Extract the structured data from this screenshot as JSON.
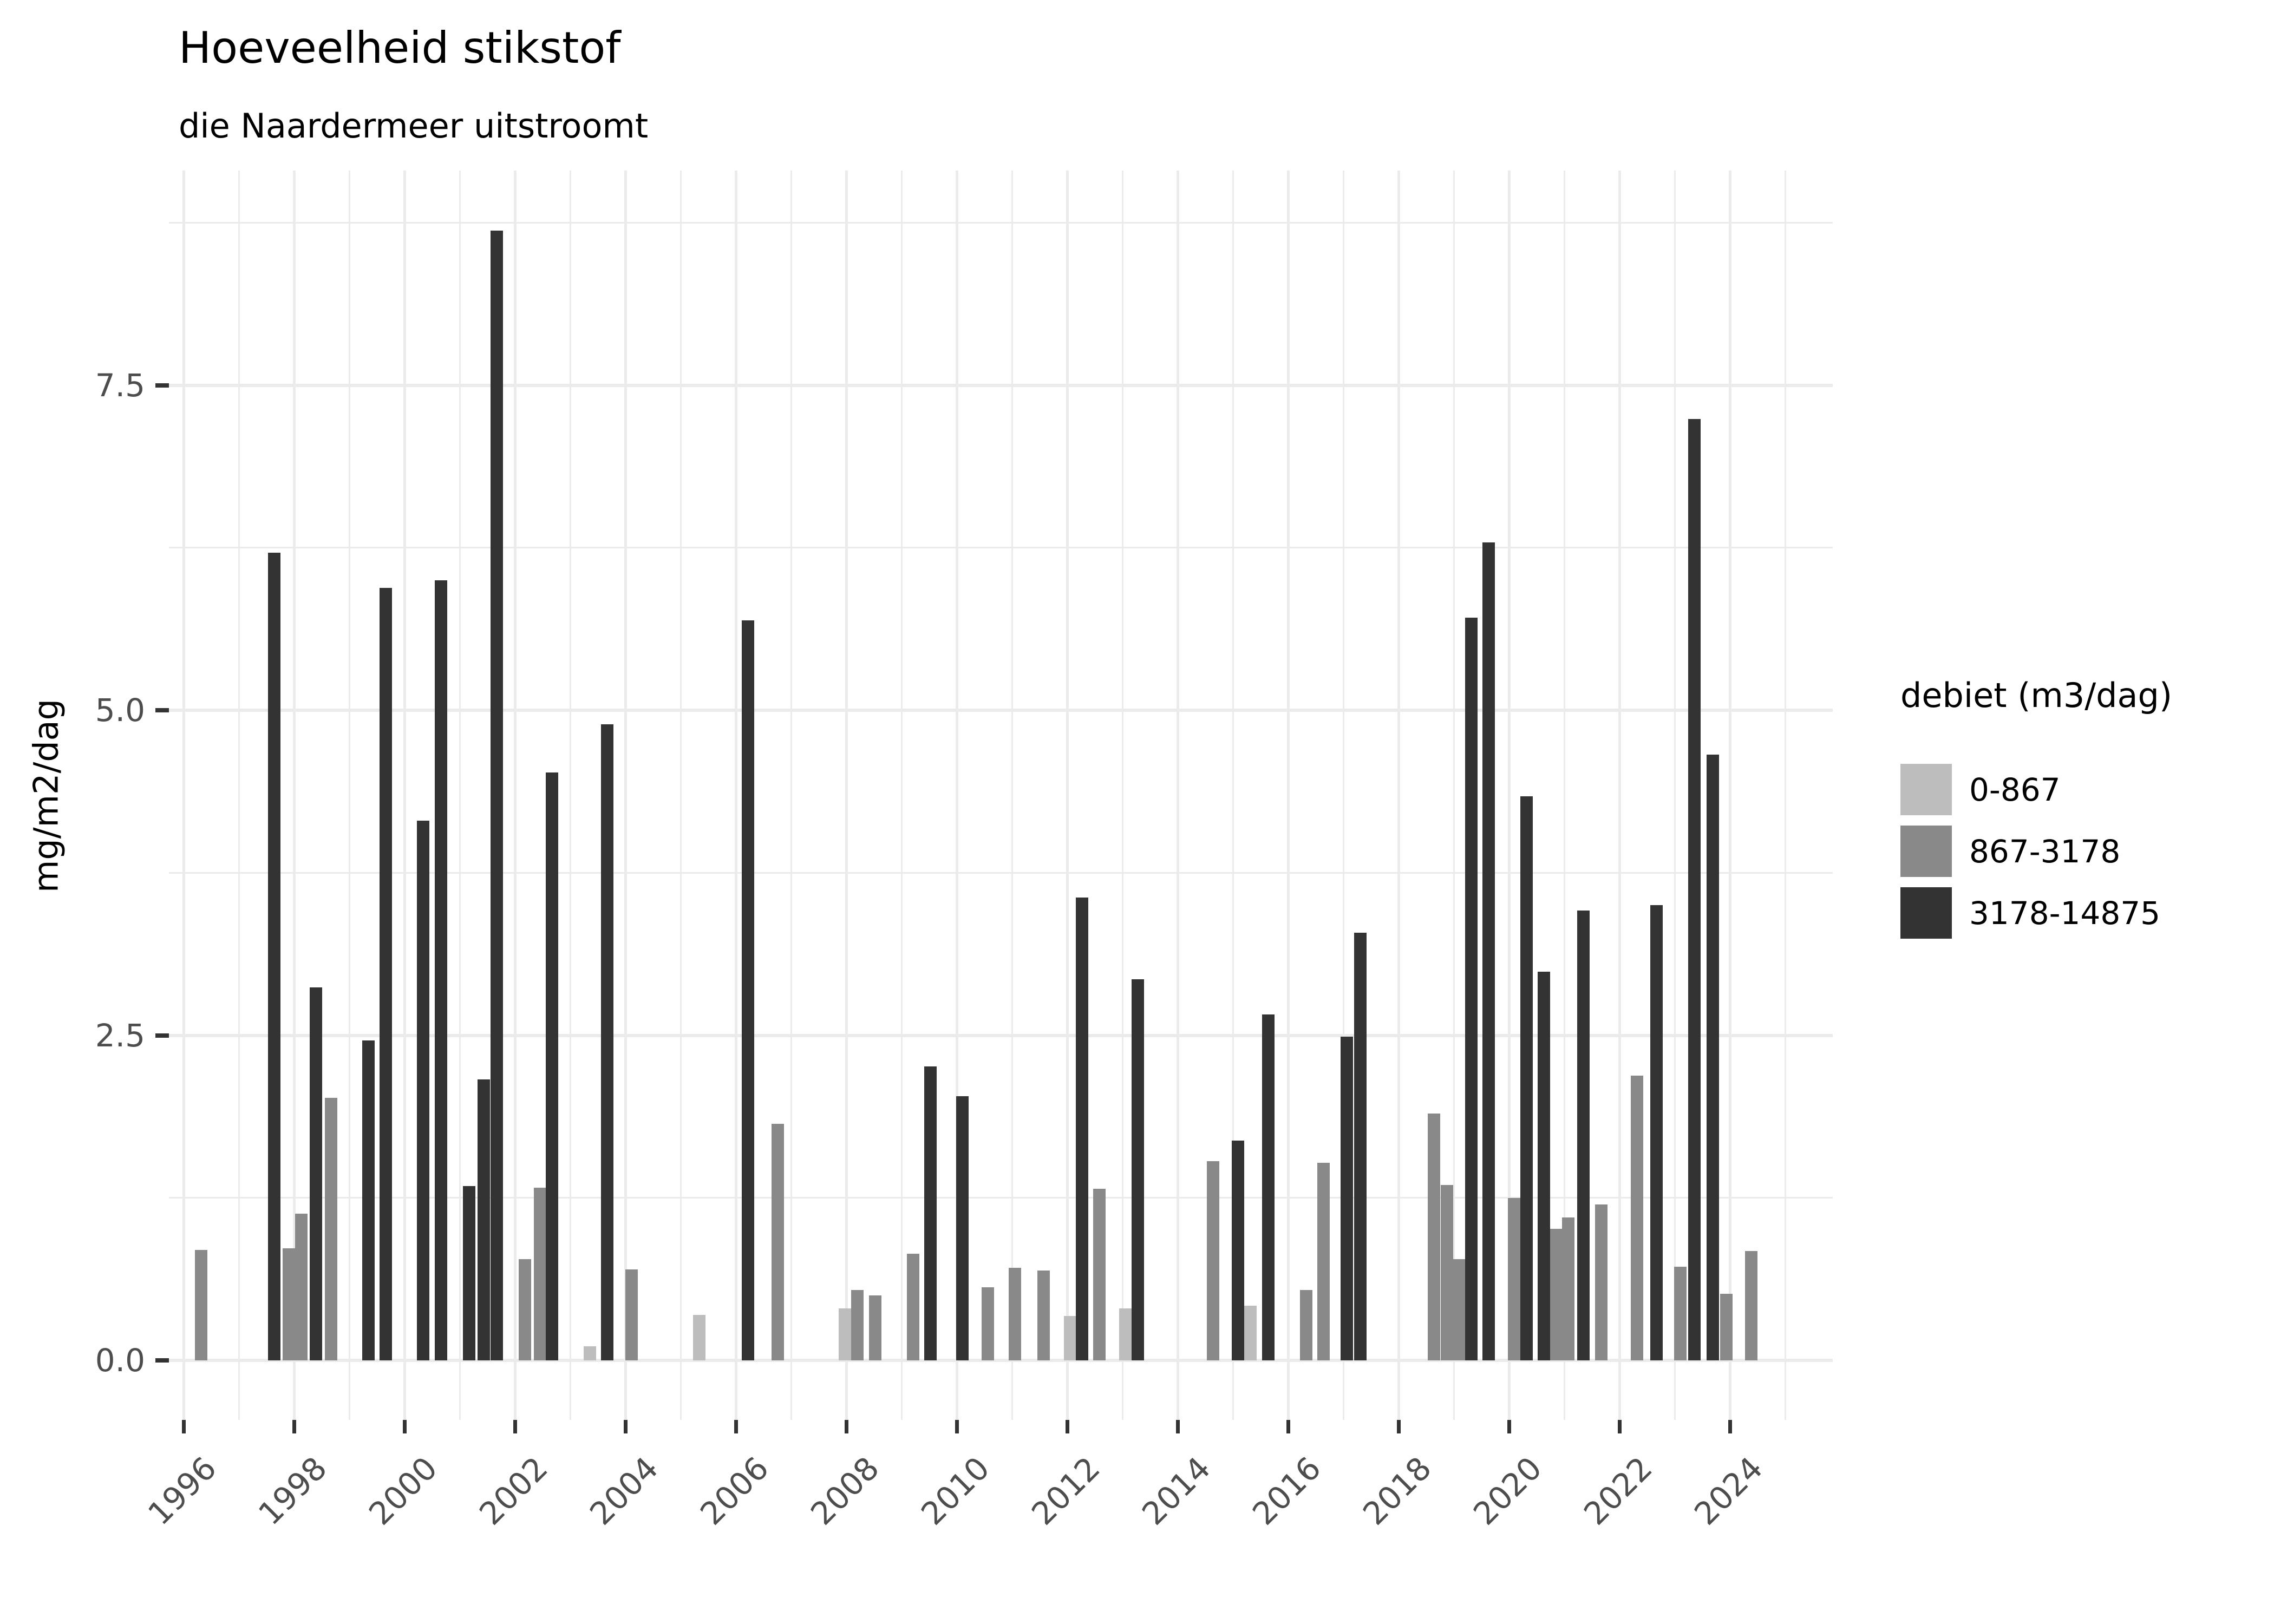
{
  "header": {
    "title": "Hoeveelheid stikstof",
    "subtitle": "die Naardermeer uitstroomt"
  },
  "chart_data": {
    "type": "bar",
    "title": "Hoeveelheid stikstof",
    "subtitle": "die Naardermeer uitstroomt",
    "xlabel": "",
    "ylabel": "mg/m2/dag",
    "ylim": [
      0,
      9.2
    ],
    "y_ticks": [
      0.0,
      2.5,
      5.0,
      7.5
    ],
    "y_tick_labels": [
      "0.0",
      "2.5",
      "5.0",
      "7.5"
    ],
    "y_minor_ticks": [
      1.25,
      3.75,
      6.25,
      8.75
    ],
    "x_ticks": [
      1996,
      1998,
      2000,
      2002,
      2004,
      2006,
      2008,
      2010,
      2012,
      2014,
      2016,
      2018,
      2020,
      2022,
      2024
    ],
    "x_tick_labels": [
      "1996",
      "1998",
      "2000",
      "2002",
      "2004",
      "2006",
      "2008",
      "2010",
      "2012",
      "2014",
      "2016",
      "2018",
      "2020",
      "2022",
      "2024"
    ],
    "x_range_years": [
      1995.7,
      2025.7
    ],
    "grid": "major-and-minor, light gray on white",
    "legend": {
      "title": "debiet (m3/dag)",
      "position": "right",
      "entries": [
        {
          "label": "0-867",
          "color": "#bdbdbd"
        },
        {
          "label": "867-3178",
          "color": "#898989"
        },
        {
          "label": "3178-14875",
          "color": "#333333"
        }
      ]
    },
    "bars": [
      {
        "x": 1996.31,
        "v": 0.85,
        "debiet": "867-3178"
      },
      {
        "x": 1997.64,
        "v": 6.21,
        "debiet": "3178-14875"
      },
      {
        "x": 1997.9,
        "v": 0.86,
        "debiet": "867-3178"
      },
      {
        "x": 1998.13,
        "v": 1.13,
        "debiet": "867-3178"
      },
      {
        "x": 1998.39,
        "v": 2.87,
        "debiet": "3178-14875"
      },
      {
        "x": 1998.67,
        "v": 2.02,
        "debiet": "867-3178"
      },
      {
        "x": 1999.34,
        "v": 2.46,
        "debiet": "3178-14875"
      },
      {
        "x": 1999.66,
        "v": 5.94,
        "debiet": "3178-14875"
      },
      {
        "x": 2000.33,
        "v": 4.15,
        "debiet": "3178-14875"
      },
      {
        "x": 2000.66,
        "v": 6.0,
        "debiet": "3178-14875"
      },
      {
        "x": 2001.17,
        "v": 1.34,
        "debiet": "3178-14875"
      },
      {
        "x": 2001.43,
        "v": 2.16,
        "debiet": "3178-14875"
      },
      {
        "x": 2001.67,
        "v": 8.69,
        "debiet": "3178-14875"
      },
      {
        "x": 2002.18,
        "v": 0.78,
        "debiet": "867-3178"
      },
      {
        "x": 2002.45,
        "v": 1.33,
        "debiet": "867-3178"
      },
      {
        "x": 2002.67,
        "v": 4.52,
        "debiet": "3178-14875"
      },
      {
        "x": 2003.35,
        "v": 0.11,
        "debiet": "0-867"
      },
      {
        "x": 2003.67,
        "v": 4.89,
        "debiet": "3178-14875"
      },
      {
        "x": 2004.11,
        "v": 0.7,
        "debiet": "867-3178"
      },
      {
        "x": 2005.33,
        "v": 0.35,
        "debiet": "0-867"
      },
      {
        "x": 2006.22,
        "v": 5.69,
        "debiet": "3178-14875"
      },
      {
        "x": 2006.75,
        "v": 1.82,
        "debiet": "867-3178"
      },
      {
        "x": 2007.97,
        "v": 0.4,
        "debiet": "0-867"
      },
      {
        "x": 2008.2,
        "v": 0.54,
        "debiet": "867-3178"
      },
      {
        "x": 2008.52,
        "v": 0.5,
        "debiet": "867-3178"
      },
      {
        "x": 2009.21,
        "v": 0.82,
        "debiet": "867-3178"
      },
      {
        "x": 2009.52,
        "v": 2.26,
        "debiet": "3178-14875"
      },
      {
        "x": 2010.1,
        "v": 2.03,
        "debiet": "3178-14875"
      },
      {
        "x": 2010.56,
        "v": 0.56,
        "debiet": "867-3178"
      },
      {
        "x": 2011.05,
        "v": 0.71,
        "debiet": "867-3178"
      },
      {
        "x": 2011.57,
        "v": 0.69,
        "debiet": "867-3178"
      },
      {
        "x": 2012.05,
        "v": 0.34,
        "debiet": "0-867"
      },
      {
        "x": 2012.26,
        "v": 3.56,
        "debiet": "3178-14875"
      },
      {
        "x": 2012.58,
        "v": 1.32,
        "debiet": "867-3178"
      },
      {
        "x": 2013.05,
        "v": 0.4,
        "debiet": "0-867"
      },
      {
        "x": 2013.27,
        "v": 2.93,
        "debiet": "3178-14875"
      },
      {
        "x": 2014.64,
        "v": 1.53,
        "debiet": "867-3178"
      },
      {
        "x": 2015.09,
        "v": 1.69,
        "debiet": "3178-14875"
      },
      {
        "x": 2015.31,
        "v": 0.42,
        "debiet": "0-867"
      },
      {
        "x": 2015.64,
        "v": 2.66,
        "debiet": "3178-14875"
      },
      {
        "x": 2016.32,
        "v": 0.54,
        "debiet": "867-3178"
      },
      {
        "x": 2016.64,
        "v": 1.52,
        "debiet": "867-3178"
      },
      {
        "x": 2017.06,
        "v": 2.49,
        "debiet": "3178-14875"
      },
      {
        "x": 2017.3,
        "v": 3.29,
        "debiet": "3178-14875"
      },
      {
        "x": 2018.64,
        "v": 1.9,
        "debiet": "867-3178"
      },
      {
        "x": 2018.87,
        "v": 1.35,
        "debiet": "867-3178"
      },
      {
        "x": 2019.09,
        "v": 0.78,
        "debiet": "867-3178"
      },
      {
        "x": 2019.31,
        "v": 5.71,
        "debiet": "3178-14875"
      },
      {
        "x": 2019.63,
        "v": 6.29,
        "debiet": "3178-14875"
      },
      {
        "x": 2020.09,
        "v": 1.25,
        "debiet": "867-3178"
      },
      {
        "x": 2020.31,
        "v": 4.34,
        "debiet": "3178-14875"
      },
      {
        "x": 2020.63,
        "v": 2.99,
        "debiet": "3178-14875"
      },
      {
        "x": 2020.85,
        "v": 1.01,
        "debiet": "867-3178"
      },
      {
        "x": 2021.07,
        "v": 1.1,
        "debiet": "867-3178"
      },
      {
        "x": 2021.34,
        "v": 3.46,
        "debiet": "3178-14875"
      },
      {
        "x": 2021.67,
        "v": 1.2,
        "debiet": "867-3178"
      },
      {
        "x": 2022.31,
        "v": 2.19,
        "debiet": "867-3178"
      },
      {
        "x": 2022.67,
        "v": 3.5,
        "debiet": "3178-14875"
      },
      {
        "x": 2023.1,
        "v": 0.72,
        "debiet": "867-3178"
      },
      {
        "x": 2023.35,
        "v": 7.24,
        "debiet": "3178-14875"
      },
      {
        "x": 2023.69,
        "v": 4.66,
        "debiet": "3178-14875"
      },
      {
        "x": 2023.93,
        "v": 0.51,
        "debiet": "867-3178"
      },
      {
        "x": 2024.38,
        "v": 0.84,
        "debiet": "867-3178"
      }
    ]
  },
  "colors": {
    "background": "#ffffff",
    "gridline": "#ebebeb",
    "tick_mark": "#333333",
    "tick_label": "#4d4d4d",
    "bar_0-867": "#bdbdbd",
    "bar_867-3178": "#898989",
    "bar_3178-14875": "#333333"
  }
}
